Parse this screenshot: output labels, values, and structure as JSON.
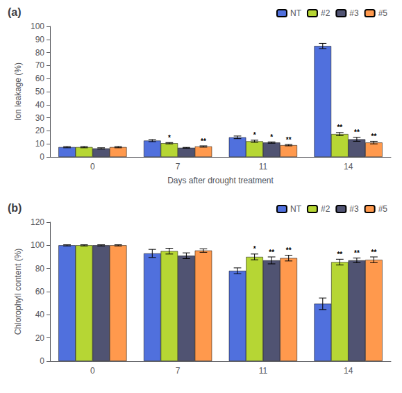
{
  "chart_data": [
    {
      "type": "bar",
      "title": "(a)",
      "xlabel": "Days after drought treatment",
      "ylabel": "Ion leakage (%)",
      "categories": [
        "0",
        "7",
        "11",
        "14"
      ],
      "ylim": [
        0,
        100
      ],
      "yticks": [
        0,
        10,
        20,
        30,
        40,
        50,
        60,
        70,
        80,
        90,
        100
      ],
      "grid": false,
      "legend": "upper right",
      "series": [
        {
          "name": "NT",
          "values": [
            7.5,
            12.5,
            15.0,
            85.0
          ],
          "errors": [
            0.5,
            0.8,
            1.0,
            2.0
          ]
        },
        {
          "name": "#2",
          "values": [
            7.5,
            10.5,
            12.0,
            17.5
          ],
          "errors": [
            0.5,
            0.5,
            0.8,
            1.2
          ],
          "annotations": [
            null,
            "*",
            "*",
            "**"
          ]
        },
        {
          "name": "#3",
          "values": [
            6.5,
            7.0,
            11.0,
            13.5
          ],
          "errors": [
            0.5,
            0.3,
            0.5,
            1.5
          ],
          "annotations": [
            null,
            null,
            "*",
            "**"
          ]
        },
        {
          "name": "#5",
          "values": [
            7.5,
            8.0,
            9.0,
            11.0
          ],
          "errors": [
            0.5,
            0.5,
            0.5,
            1.0
          ],
          "annotations": [
            null,
            "**",
            "**",
            "**"
          ]
        }
      ]
    },
    {
      "type": "bar",
      "title": "(b)",
      "ylabel": "Chlorophyll content (%)",
      "categories": [
        "0",
        "7",
        "11",
        "14"
      ],
      "ylim": [
        0,
        120
      ],
      "yticks": [
        0,
        20,
        40,
        60,
        80,
        100,
        120
      ],
      "grid": false,
      "legend": "upper right",
      "series": [
        {
          "name": "NT",
          "values": [
            100.0,
            93.0,
            78.0,
            49.5
          ],
          "errors": [
            0.5,
            3.5,
            2.5,
            5.0
          ]
        },
        {
          "name": "#2",
          "values": [
            100.0,
            95.0,
            90.0,
            85.5
          ],
          "errors": [
            0.5,
            2.5,
            2.5,
            2.5
          ],
          "annotations": [
            null,
            null,
            "*",
            "**"
          ]
        },
        {
          "name": "#3",
          "values": [
            100.0,
            91.0,
            87.0,
            87.0
          ],
          "errors": [
            0.5,
            2.5,
            3.0,
            2.0
          ],
          "annotations": [
            null,
            null,
            "**",
            "**"
          ]
        },
        {
          "name": "#5",
          "values": [
            100.0,
            95.5,
            89.0,
            87.5
          ],
          "errors": [
            0.5,
            1.5,
            2.5,
            2.5
          ],
          "annotations": [
            null,
            null,
            "**",
            "**"
          ]
        }
      ]
    }
  ]
}
